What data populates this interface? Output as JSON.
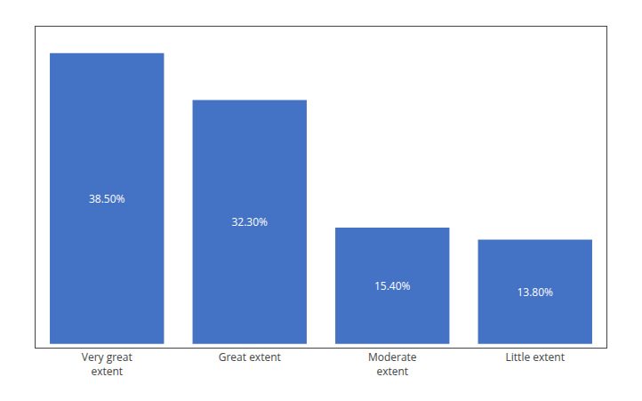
{
  "chart_data": {
    "type": "bar",
    "categories": [
      "Very great\nextent",
      "Great extent",
      "Moderate\nextent",
      "Little extent"
    ],
    "values": [
      38.5,
      32.3,
      15.4,
      13.8
    ],
    "value_labels": [
      "38.50%",
      "32.30%",
      "15.40%",
      "13.80%"
    ],
    "data_labels": true,
    "color": "#4472C4",
    "ylim": [
      -0.5,
      42
    ],
    "yticks": [],
    "grid": false,
    "tick_labels": "x"
  }
}
